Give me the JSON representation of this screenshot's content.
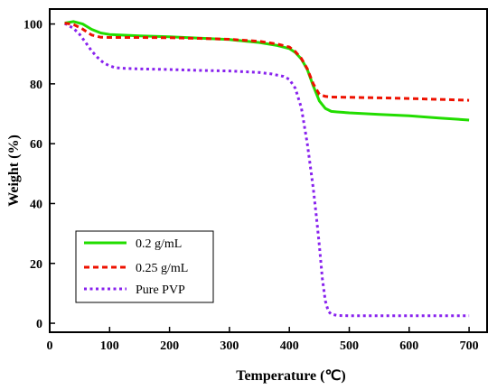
{
  "chart_data": {
    "type": "line",
    "xlabel": "Temperature  (℃)",
    "ylabel": "Weight  (%)",
    "xlim": [
      0,
      730
    ],
    "ylim": [
      -3,
      105
    ],
    "xticks": [
      0,
      100,
      200,
      300,
      400,
      500,
      600,
      700
    ],
    "yticks": [
      0,
      20,
      40,
      60,
      80,
      100
    ],
    "grid": false,
    "legend_position": "bottom-left",
    "series": [
      {
        "name": "0.2 g/mL",
        "color": "#22dd00",
        "style": "solid",
        "x": [
          25,
          40,
          55,
          70,
          85,
          100,
          150,
          200,
          250,
          300,
          350,
          380,
          400,
          410,
          420,
          430,
          440,
          450,
          460,
          470,
          480,
          500,
          550,
          600,
          650,
          700
        ],
        "y": [
          100.3,
          100.8,
          100,
          98.2,
          97,
          96.5,
          96,
          95.7,
          95.3,
          94.8,
          93.8,
          92.8,
          91.8,
          90.5,
          88.3,
          84.8,
          79.3,
          74.3,
          71.8,
          70.8,
          70.6,
          70.3,
          69.8,
          69.3,
          68.6,
          67.9
        ]
      },
      {
        "name": "0.25 g/mL",
        "color": "#ee1100",
        "style": "dash",
        "x": [
          25,
          40,
          55,
          70,
          85,
          100,
          150,
          200,
          250,
          300,
          350,
          380,
          400,
          410,
          420,
          430,
          440,
          450,
          460,
          470,
          500,
          550,
          600,
          650,
          700
        ],
        "y": [
          100.3,
          99.8,
          98.3,
          96.3,
          95.6,
          95.5,
          95.5,
          95.4,
          95.2,
          94.9,
          94.2,
          93.3,
          92.3,
          90.8,
          88.5,
          85,
          80,
          76.5,
          75.8,
          75.6,
          75.5,
          75.3,
          75.1,
          74.8,
          74.5
        ]
      },
      {
        "name": "Pure PVP",
        "color": "#8822ee",
        "style": "dot",
        "x": [
          25,
          40,
          50,
          60,
          70,
          80,
          90,
          100,
          110,
          120,
          150,
          200,
          250,
          300,
          350,
          370,
          390,
          400,
          410,
          420,
          430,
          440,
          445,
          450,
          455,
          460,
          465,
          470,
          480,
          500,
          600,
          700
        ],
        "y": [
          100.2,
          98.5,
          96.5,
          93.8,
          91,
          88.8,
          87,
          86,
          85.4,
          85.2,
          85,
          84.8,
          84.5,
          84.3,
          83.8,
          83.3,
          82.5,
          81.5,
          78.5,
          72,
          60,
          45,
          36,
          26,
          15,
          7.5,
          4,
          3,
          2.6,
          2.5,
          2.5,
          2.5
        ]
      }
    ]
  }
}
